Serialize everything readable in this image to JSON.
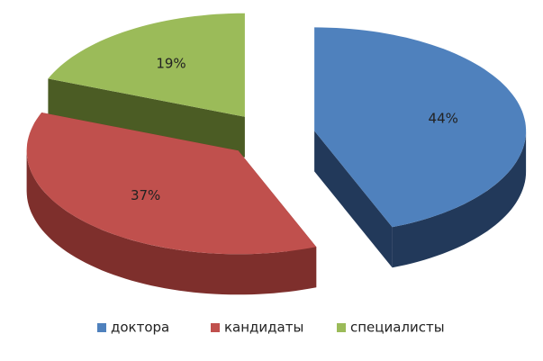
{
  "chart_data": {
    "type": "pie",
    "categories": [
      "доктора",
      "кандидаты",
      "специалисты"
    ],
    "values": [
      44,
      37,
      19
    ],
    "value_labels": [
      "44%",
      "37%",
      "19%"
    ],
    "colors": [
      "#4f81bd",
      "#c0504d",
      "#9bbb59"
    ],
    "side_colors": [
      "#22395a",
      "#7e2f2c",
      "#4b5c24"
    ],
    "legend": "bottom"
  }
}
